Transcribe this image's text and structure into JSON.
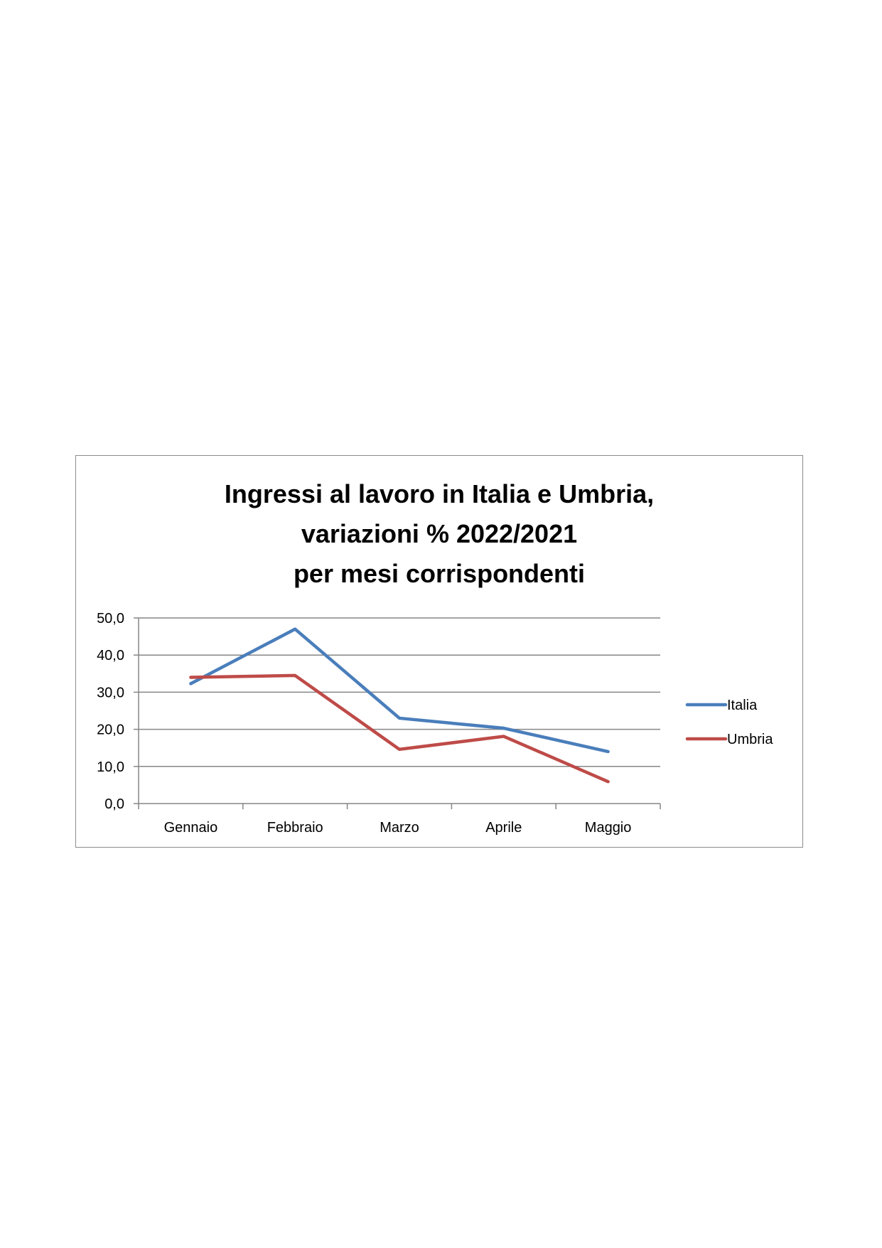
{
  "chart_data": {
    "type": "line",
    "title_lines": [
      "Ingressi al lavoro in Italia e Umbria,",
      "variazioni % 2022/2021",
      "per mesi corrispondenti"
    ],
    "categories": [
      "Gennaio",
      "Febbraio",
      "Marzo",
      "Aprile",
      "Maggio"
    ],
    "series": [
      {
        "name": "Italia",
        "color": "#4a7ebb",
        "values": [
          32.3,
          47.0,
          23.0,
          20.3,
          14.0
        ]
      },
      {
        "name": "Umbria",
        "color": "#be4b48",
        "values": [
          34.0,
          34.5,
          14.6,
          18.1,
          5.9
        ]
      }
    ],
    "yticks": [
      "0,0",
      "10,0",
      "20,0",
      "30,0",
      "40,0",
      "50,0"
    ],
    "ylim": [
      0,
      50
    ],
    "grid": true,
    "legend_position": "right"
  }
}
